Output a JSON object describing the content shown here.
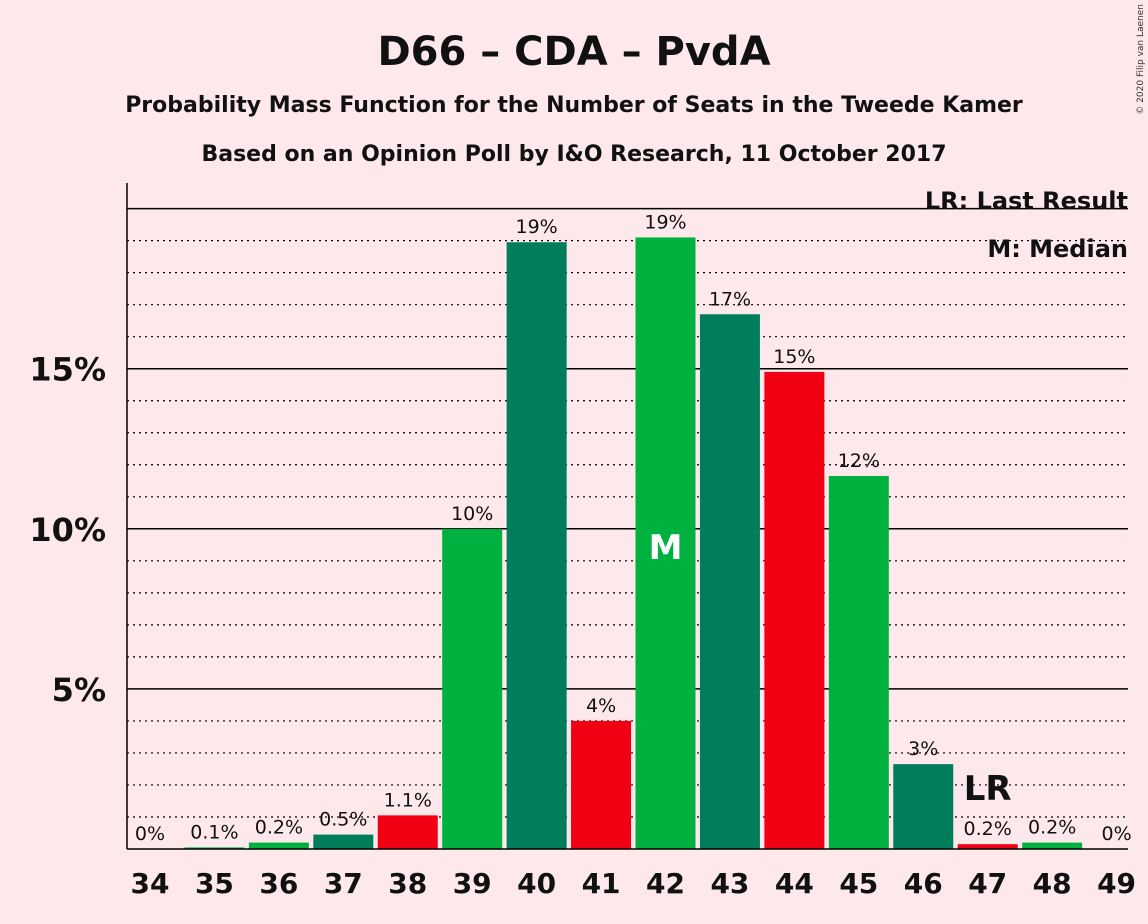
{
  "chart_data": {
    "type": "bar",
    "title": "D66 – CDA – PvdA",
    "subtitle1": "Probability Mass Function for the Number of Seats in the Tweede Kamer",
    "subtitle2": "Based on an Opinion Poll by I&O Research, 11 October 2017",
    "copyright": "© 2020 Filip van Laenen",
    "legend": {
      "lr": "LR: Last Result",
      "median": "M: Median"
    },
    "ylim": [
      0,
      20.8
    ],
    "yticks": [
      {
        "value": 5,
        "label": "5%"
      },
      {
        "value": 10,
        "label": "10%"
      },
      {
        "value": 15,
        "label": "15%"
      }
    ],
    "categories": [
      "34",
      "35",
      "36",
      "37",
      "38",
      "39",
      "40",
      "41",
      "42",
      "43",
      "44",
      "45",
      "46",
      "47",
      "48",
      "49"
    ],
    "values": [
      0,
      0.05,
      0.2,
      0.45,
      1.05,
      10,
      18.95,
      4,
      19.1,
      16.7,
      14.9,
      11.65,
      2.65,
      0.15,
      0.2,
      0
    ],
    "labels": [
      "0%",
      "0.1%",
      "0.2%",
      "0.5%",
      "1.1%",
      "10%",
      "19%",
      "4%",
      "19%",
      "17%",
      "15%",
      "12%",
      "3%",
      "0.2%",
      "0.2%",
      "0%"
    ],
    "colors": [
      "#00b140",
      "#00b140",
      "#00b140",
      "#007d5a",
      "#f10014",
      "#00b140",
      "#007d5a",
      "#f10014",
      "#00b140",
      "#007d5a",
      "#f10014",
      "#00b140",
      "#007d5a",
      "#f10014",
      "#00b140",
      "#00b140"
    ],
    "median": {
      "category": "42",
      "text": "M"
    },
    "last_result": {
      "category": "47",
      "text": "LR"
    }
  }
}
